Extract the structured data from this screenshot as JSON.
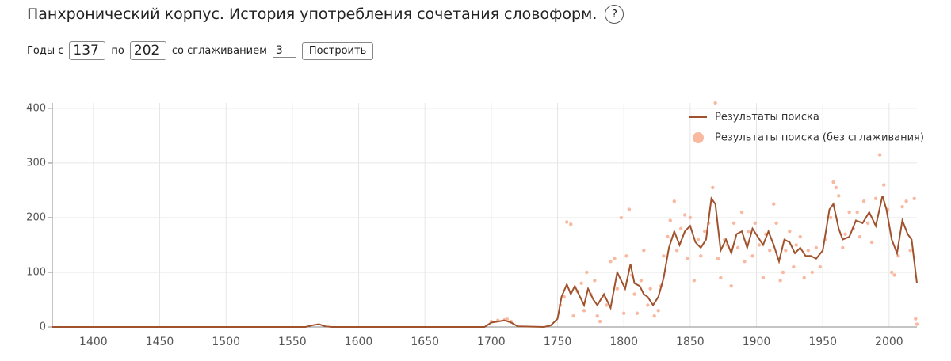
{
  "header": {
    "title": "Панхронический корпус. История употребления сочетания словоформ.",
    "help": "?"
  },
  "form": {
    "from_label": "Годы с",
    "from_value": "137",
    "to_label": "по",
    "to_value": "202",
    "smoothing_label": "со сглаживанием",
    "smoothing_value": "3",
    "button": "Построить"
  },
  "chart_data": {
    "type": "line",
    "xlim": [
      1369,
      2021
    ],
    "ylim": [
      0,
      410
    ],
    "xticks": [
      1400,
      1450,
      1500,
      1550,
      1600,
      1650,
      1700,
      1750,
      1800,
      1850,
      1900,
      1950,
      2000
    ],
    "yticks": [
      0,
      100,
      200,
      300,
      400
    ],
    "grid": true,
    "legend": "top-right",
    "series": [
      {
        "name": "Результаты поиска",
        "color": "#a0522d",
        "x": [
          1369,
          1560,
          1565,
          1570,
          1575,
          1580,
          1695,
          1700,
          1705,
          1710,
          1715,
          1720,
          1740,
          1745,
          1750,
          1753,
          1757,
          1760,
          1763,
          1767,
          1770,
          1773,
          1777,
          1780,
          1785,
          1790,
          1795,
          1798,
          1801,
          1805,
          1808,
          1812,
          1815,
          1818,
          1822,
          1826,
          1830,
          1834,
          1838,
          1842,
          1846,
          1850,
          1854,
          1858,
          1862,
          1866,
          1869,
          1873,
          1877,
          1881,
          1885,
          1889,
          1893,
          1897,
          1901,
          1905,
          1909,
          1913,
          1917,
          1921,
          1925,
          1929,
          1933,
          1937,
          1941,
          1945,
          1950,
          1955,
          1958,
          1962,
          1965,
          1970,
          1975,
          1980,
          1985,
          1990,
          1995,
          1998,
          2002,
          2006,
          2010,
          2014,
          2017,
          2021
        ],
        "values": [
          0,
          0,
          3,
          5,
          1,
          0,
          0,
          8,
          10,
          12,
          8,
          1,
          0,
          3,
          15,
          55,
          78,
          60,
          75,
          55,
          40,
          70,
          50,
          40,
          60,
          35,
          100,
          85,
          70,
          115,
          80,
          75,
          60,
          55,
          40,
          55,
          90,
          145,
          175,
          150,
          175,
          185,
          155,
          145,
          160,
          235,
          225,
          140,
          160,
          135,
          170,
          175,
          145,
          180,
          165,
          150,
          175,
          150,
          120,
          160,
          155,
          135,
          145,
          130,
          130,
          125,
          140,
          215,
          225,
          180,
          160,
          165,
          195,
          190,
          210,
          185,
          240,
          215,
          160,
          135,
          195,
          170,
          160,
          80
        ]
      },
      {
        "name": "Результаты поиска (без сглаживания)",
        "color": "#f9b8a0",
        "type": "scatter",
        "x": [
          1700,
          1705,
          1710,
          1712,
          1715,
          1752,
          1755,
          1757,
          1760,
          1762,
          1765,
          1768,
          1770,
          1772,
          1775,
          1778,
          1780,
          1782,
          1785,
          1787,
          1790,
          1793,
          1795,
          1798,
          1800,
          1802,
          1804,
          1806,
          1808,
          1810,
          1813,
          1815,
          1818,
          1820,
          1823,
          1826,
          1828,
          1830,
          1833,
          1835,
          1838,
          1840,
          1843,
          1846,
          1848,
          1850,
          1853,
          1856,
          1858,
          1861,
          1864,
          1867,
          1869,
          1871,
          1873,
          1876,
          1878,
          1881,
          1883,
          1886,
          1889,
          1891,
          1894,
          1897,
          1899,
          1902,
          1905,
          1907,
          1910,
          1913,
          1915,
          1918,
          1920,
          1922,
          1925,
          1928,
          1930,
          1933,
          1936,
          1939,
          1942,
          1945,
          1948,
          1952,
          1956,
          1958,
          1960,
          1962,
          1965,
          1967,
          1970,
          1973,
          1976,
          1978,
          1981,
          1984,
          1987,
          1990,
          1993,
          1996,
          1999,
          2002,
          2004,
          2007,
          2010,
          2013,
          2016,
          2019,
          2020,
          2021
        ],
        "values": [
          10,
          12,
          13,
          14,
          10,
          40,
          55,
          192,
          188,
          20,
          65,
          80,
          30,
          100,
          60,
          85,
          20,
          10,
          55,
          40,
          120,
          125,
          70,
          200,
          25,
          130,
          215,
          95,
          60,
          25,
          85,
          140,
          40,
          70,
          20,
          30,
          75,
          130,
          165,
          195,
          230,
          140,
          180,
          205,
          125,
          200,
          85,
          160,
          130,
          175,
          190,
          255,
          410,
          125,
          90,
          160,
          150,
          75,
          190,
          145,
          210,
          120,
          175,
          130,
          190,
          150,
          90,
          170,
          140,
          225,
          190,
          85,
          100,
          140,
          175,
          110,
          150,
          165,
          90,
          140,
          100,
          145,
          110,
          160,
          200,
          265,
          255,
          240,
          145,
          170,
          210,
          180,
          210,
          165,
          230,
          190,
          155,
          235,
          315,
          260,
          215,
          100,
          95,
          130,
          220,
          230,
          140,
          235,
          15,
          5
        ]
      }
    ]
  }
}
